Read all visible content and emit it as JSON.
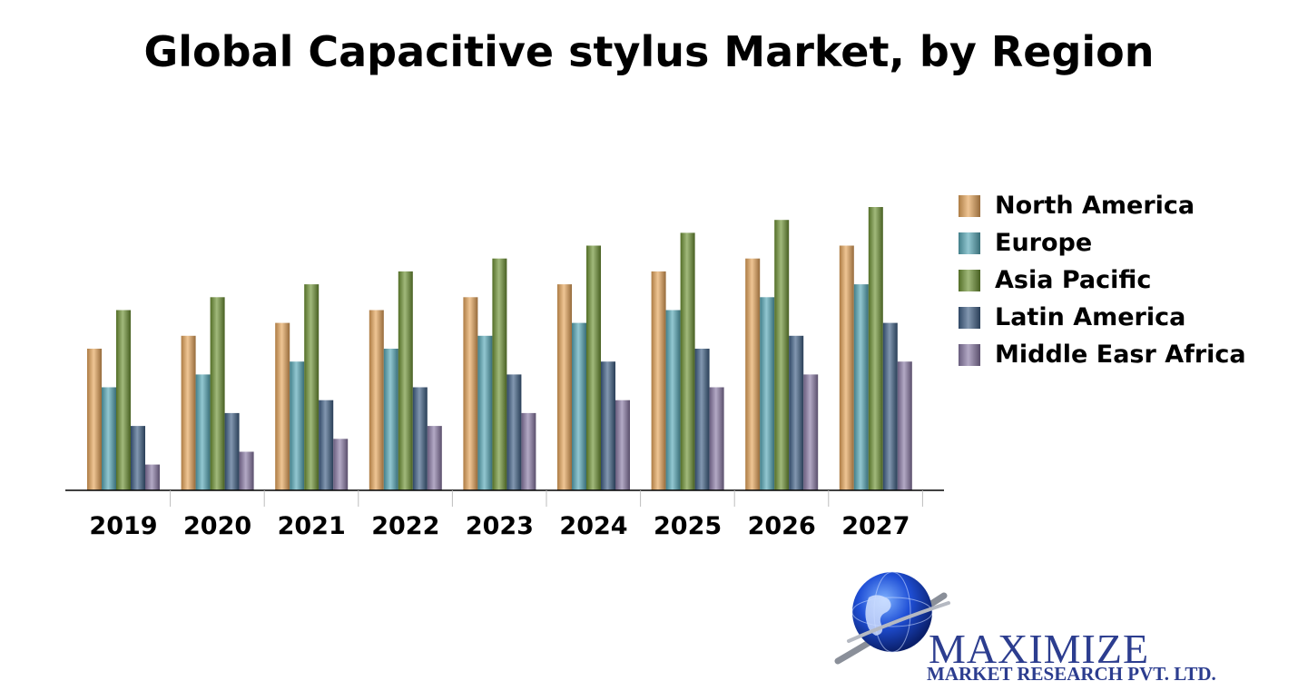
{
  "chart_data": {
    "type": "bar",
    "title": "Global Capacitive stylus Market, by Region",
    "xlabel": "",
    "ylabel": "",
    "categories": [
      "2019",
      "2020",
      "2021",
      "2022",
      "2023",
      "2024",
      "2025",
      "2026",
      "2027"
    ],
    "ylim": [
      0,
      11
    ],
    "grid": false,
    "legend_position": "right",
    "series": [
      {
        "name": "North America",
        "color": "#e6a55a",
        "values": [
          5.5,
          6.0,
          6.5,
          7.0,
          7.5,
          8.0,
          8.5,
          9.0,
          9.5
        ]
      },
      {
        "name": "Europe",
        "color": "#58a9b8",
        "values": [
          4.0,
          4.5,
          5.0,
          5.5,
          6.0,
          6.5,
          7.0,
          7.5,
          8.0
        ]
      },
      {
        "name": "Asia Pacific",
        "color": "#6e9334",
        "values": [
          7.0,
          7.5,
          8.0,
          8.5,
          9.0,
          9.5,
          10.0,
          10.5,
          11.0
        ]
      },
      {
        "name": "Latin America",
        "color": "#3f5f86",
        "values": [
          2.5,
          3.0,
          3.5,
          4.0,
          4.5,
          5.0,
          5.5,
          6.0,
          6.5
        ]
      },
      {
        "name": "Middle Easr Africa",
        "color": "#8a7aa6",
        "values": [
          1.0,
          1.5,
          2.0,
          2.5,
          3.0,
          3.5,
          4.0,
          4.5,
          5.0
        ]
      }
    ]
  },
  "logo": {
    "name": "MAXIMIZE",
    "subtitle": "MARKET RESEARCH PVT. LTD."
  }
}
